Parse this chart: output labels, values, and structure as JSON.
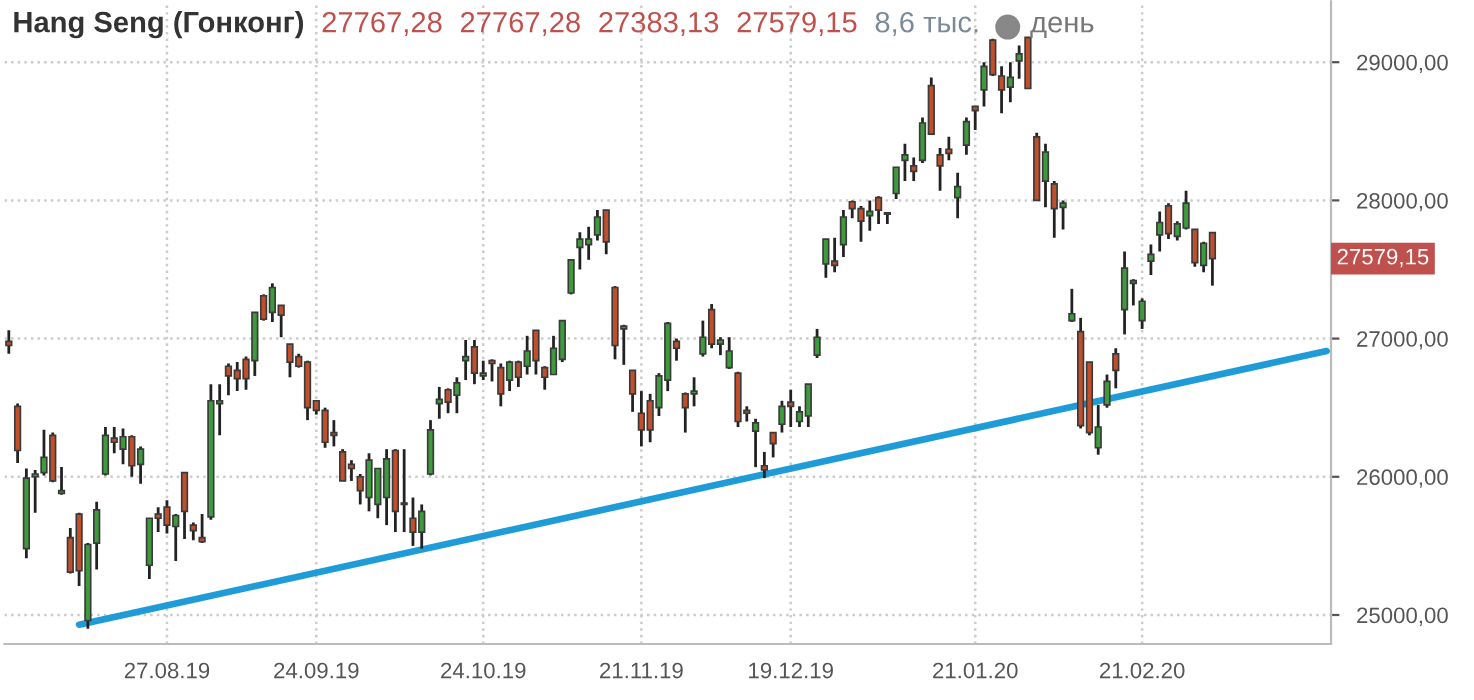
{
  "chart_data": {
    "type": "candlestick",
    "title": "Hang Seng (Гонконг)",
    "annotations": [
      "27767,28",
      "27767,28",
      "27383,13",
      "27579,15",
      "8,6 тыс.",
      "день",
      "27579,15"
    ],
    "categories": [
      null,
      null,
      null,
      null,
      null,
      null,
      null,
      null,
      null,
      null,
      null,
      null,
      null,
      null,
      null,
      null,
      null,
      null,
      "27.08.19",
      null,
      null,
      null,
      null,
      null,
      null,
      null,
      null,
      null,
      null,
      null,
      null,
      null,
      null,
      null,
      null,
      "24.09.19",
      null,
      null,
      null,
      null,
      null,
      null,
      null,
      null,
      null,
      null,
      null,
      null,
      null,
      null,
      null,
      null,
      null,
      null,
      "24.10.19",
      null,
      null,
      null,
      null,
      null,
      null,
      null,
      null,
      null,
      null,
      null,
      null,
      null,
      null,
      null,
      null,
      null,
      "21.11.19",
      null,
      null,
      null,
      null,
      null,
      null,
      null,
      null,
      null,
      null,
      null,
      null,
      null,
      null,
      null,
      null,
      "19.12.19",
      null,
      null,
      null,
      null,
      null,
      null,
      null,
      null,
      null,
      null,
      null,
      null,
      null,
      null,
      null,
      null,
      null,
      null,
      null,
      null,
      "21.01.20",
      null,
      null,
      null,
      null,
      null,
      null,
      null,
      null,
      null,
      null,
      null,
      null,
      null,
      null,
      null,
      null,
      null,
      null,
      "21.02.20",
      null,
      null,
      null,
      null,
      null,
      null,
      null,
      null,
      null,
      null,
      null,
      null,
      null,
      null,
      null,
      null,
      null,
      null,
      null,
      null,
      null
    ],
    "ohlc": [
      [
        26980,
        27060,
        26890,
        26950
      ],
      [
        26510,
        26530,
        26100,
        26190
      ],
      [
        25480,
        26060,
        25410,
        25990
      ],
      [
        26000,
        26050,
        25740,
        26020
      ],
      [
        26030,
        26340,
        26010,
        26140
      ],
      [
        26300,
        26320,
        25960,
        25970
      ],
      [
        25880,
        26070,
        25870,
        25900
      ],
      [
        25560,
        25630,
        25300,
        25310
      ],
      [
        25730,
        25740,
        25210,
        25320
      ],
      [
        24960,
        25520,
        24900,
        25510
      ],
      [
        25520,
        25820,
        25330,
        25760
      ],
      [
        26020,
        26360,
        26010,
        26300
      ],
      [
        26280,
        26360,
        26170,
        26250
      ],
      [
        26200,
        26350,
        26090,
        26290
      ],
      [
        26290,
        26300,
        26000,
        26080
      ],
      [
        26090,
        26220,
        25950,
        26200
      ],
      [
        25360,
        25700,
        25260,
        25700
      ],
      [
        25730,
        25780,
        25600,
        25700
      ],
      [
        25780,
        25830,
        25590,
        25650
      ],
      [
        25640,
        25730,
        25390,
        25720
      ],
      [
        26030,
        26030,
        25550,
        25750
      ],
      [
        25650,
        25670,
        25540,
        25610
      ],
      [
        25560,
        25730,
        25520,
        25530
      ],
      [
        25710,
        26670,
        25690,
        26550
      ],
      [
        26530,
        26670,
        26300,
        26550
      ],
      [
        26800,
        26820,
        26590,
        26730
      ],
      [
        26770,
        26830,
        26620,
        26710
      ],
      [
        26850,
        26870,
        26630,
        26710
      ],
      [
        26840,
        27190,
        26730,
        27190
      ],
      [
        27310,
        27320,
        27130,
        27140
      ],
      [
        27190,
        27400,
        27120,
        27370
      ],
      [
        27240,
        27240,
        27010,
        27170
      ],
      [
        26960,
        26960,
        26720,
        26830
      ],
      [
        26870,
        26890,
        26790,
        26800
      ],
      [
        26830,
        26840,
        26410,
        26500
      ],
      [
        26550,
        26550,
        26450,
        26480
      ],
      [
        26480,
        26500,
        26210,
        26250
      ],
      [
        26320,
        26410,
        26220,
        26300
      ],
      [
        26180,
        26200,
        25970,
        25970
      ],
      [
        26090,
        26120,
        25970,
        26060
      ],
      [
        26000,
        26020,
        25800,
        25900
      ],
      [
        25850,
        26170,
        25750,
        26120
      ],
      [
        25800,
        26060,
        25700,
        26060
      ],
      [
        25850,
        26200,
        25650,
        26130
      ],
      [
        26190,
        26200,
        25600,
        25750
      ],
      [
        25800,
        26200,
        25600,
        25810
      ],
      [
        25700,
        25850,
        25500,
        25600
      ],
      [
        25600,
        25800,
        25480,
        25750
      ],
      [
        26020,
        26410,
        26010,
        26340
      ],
      [
        26530,
        26650,
        26420,
        26560
      ],
      [
        26630,
        26640,
        26460,
        26540
      ],
      [
        26590,
        26720,
        26460,
        26680
      ],
      [
        26840,
        26990,
        26700,
        26870
      ],
      [
        26940,
        26990,
        26670,
        26750
      ],
      [
        26730,
        26840,
        26700,
        26750
      ],
      [
        26840,
        26850,
        26690,
        26820
      ],
      [
        26790,
        26820,
        26510,
        26600
      ],
      [
        26700,
        26840,
        26620,
        26830
      ],
      [
        26830,
        26840,
        26650,
        26720
      ],
      [
        26800,
        27020,
        26740,
        26910
      ],
      [
        27060,
        27060,
        26740,
        26840
      ],
      [
        26790,
        26800,
        26630,
        26720
      ],
      [
        26740,
        27020,
        26740,
        26930
      ],
      [
        26850,
        27130,
        26830,
        27130
      ],
      [
        27330,
        27570,
        27320,
        27570
      ],
      [
        27660,
        27770,
        27500,
        27720
      ],
      [
        27680,
        27810,
        27570,
        27720
      ],
      [
        27750,
        27930,
        27710,
        27880
      ],
      [
        27930,
        27930,
        27610,
        27700
      ],
      [
        27370,
        27380,
        26850,
        26950
      ],
      [
        27070,
        27100,
        26810,
        27090
      ],
      [
        26770,
        26770,
        26470,
        26600
      ],
      [
        26460,
        26620,
        26220,
        26340
      ],
      [
        26550,
        26600,
        26250,
        26340
      ],
      [
        26500,
        26750,
        26440,
        26730
      ],
      [
        26700,
        27120,
        26620,
        27110
      ],
      [
        26980,
        27000,
        26840,
        26930
      ],
      [
        26600,
        26610,
        26320,
        26500
      ],
      [
        26600,
        26720,
        26510,
        26620
      ],
      [
        26890,
        27130,
        26870,
        27010
      ],
      [
        27210,
        27250,
        26930,
        26960
      ],
      [
        26960,
        27010,
        26880,
        26990
      ],
      [
        26790,
        27010,
        26780,
        26910
      ],
      [
        26750,
        26760,
        26360,
        26400
      ],
      [
        26480,
        26510,
        26400,
        26460
      ],
      [
        26330,
        26420,
        26070,
        26390
      ],
      [
        26080,
        26180,
        25990,
        26050
      ],
      [
        26320,
        26320,
        26140,
        26240
      ],
      [
        26380,
        26550,
        26320,
        26510
      ],
      [
        26540,
        26630,
        26360,
        26510
      ],
      [
        26400,
        26510,
        26360,
        26470
      ],
      [
        26440,
        26670,
        26360,
        26670
      ],
      [
        26880,
        27070,
        26860,
        27010
      ],
      [
        27540,
        27720,
        27440,
        27720
      ],
      [
        27560,
        27730,
        27480,
        27530
      ],
      [
        27680,
        27930,
        27590,
        27880
      ],
      [
        27990,
        28000,
        27870,
        27940
      ],
      [
        27940,
        27960,
        27700,
        27850
      ],
      [
        27890,
        28000,
        27780,
        27920
      ],
      [
        28020,
        28030,
        27830,
        27930
      ],
      [
        27910,
        27910,
        27830,
        27900
      ],
      [
        28050,
        28240,
        28010,
        28240
      ],
      [
        28290,
        28410,
        28140,
        28330
      ],
      [
        28250,
        28310,
        28140,
        28210
      ],
      [
        28290,
        28600,
        28270,
        28560
      ],
      [
        28830,
        28890,
        28480,
        28480
      ],
      [
        28330,
        28380,
        28070,
        28250
      ],
      [
        28370,
        28460,
        28290,
        28340
      ],
      [
        28020,
        28200,
        27870,
        28100
      ],
      [
        28400,
        28600,
        28330,
        28570
      ],
      [
        28680,
        28680,
        28510,
        28650
      ],
      [
        28800,
        29000,
        28680,
        28970
      ],
      [
        29160,
        29170,
        28900,
        28910
      ],
      [
        28900,
        28970,
        28630,
        28800
      ],
      [
        28820,
        29000,
        28710,
        28890
      ],
      [
        29010,
        29120,
        28880,
        29060
      ],
      [
        29180,
        29180,
        28810,
        28810
      ],
      [
        28460,
        28490,
        28000,
        28000
      ],
      [
        28140,
        28410,
        27950,
        28350
      ],
      [
        28120,
        28140,
        27730,
        27940
      ],
      [
        27950,
        28000,
        27790,
        27980
      ],
      [
        27130,
        27360,
        27120,
        27180
      ],
      [
        27050,
        27150,
        26350,
        26370
      ],
      [
        26830,
        26830,
        26300,
        26320
      ],
      [
        26210,
        26520,
        26160,
        26360
      ],
      [
        26520,
        26740,
        26500,
        26690
      ],
      [
        26890,
        26930,
        26640,
        26770
      ],
      [
        27210,
        27630,
        27030,
        27510
      ],
      [
        27400,
        27430,
        27240,
        27420
      ],
      [
        27130,
        27290,
        27070,
        27270
      ],
      [
        27560,
        27680,
        27460,
        27610
      ],
      [
        27750,
        27920,
        27630,
        27840
      ],
      [
        27960,
        27980,
        27720,
        27760
      ],
      [
        27740,
        27850,
        27710,
        27830
      ],
      [
        27800,
        28070,
        27790,
        27980
      ],
      [
        27790,
        27790,
        27520,
        27550
      ],
      [
        27530,
        27700,
        27480,
        27690
      ],
      [
        27767.28,
        27767.28,
        27383.13,
        27579.15
      ],
      null,
      null,
      null,
      null,
      null,
      null,
      null,
      null,
      null,
      null,
      null,
      null,
      null
    ],
    "colors": [
      "#c24f2b",
      "#c24f2b",
      "#3d9b3d",
      "#3d9b3d",
      "#3d9b3d",
      "#c24f2b",
      "#3d9b3d",
      "#c24f2b",
      "#c24f2b",
      "#3d9b3d",
      "#3d9b3d",
      "#3d9b3d",
      "#c24f2b",
      "#3d9b3d",
      "#c24f2b",
      "#3d9b3d",
      "#3d9b3d",
      "#c24f2b",
      "#c24f2b",
      "#3d9b3d",
      "#c24f2b",
      "#c24f2b",
      "#c24f2b",
      "#3d9b3d",
      "#3d9b3d",
      "#c24f2b",
      "#c24f2b",
      "#c24f2b",
      "#3d9b3d",
      "#c24f2b",
      "#3d9b3d",
      "#c24f2b",
      "#c24f2b",
      "#c24f2b",
      "#c24f2b",
      "#c24f2b",
      "#c24f2b",
      "#c24f2b",
      "#c24f2b",
      "#c24f2b",
      "#c24f2b",
      "#3d9b3d",
      "#3d9b3d",
      "#3d9b3d",
      "#c24f2b",
      "#3d9b3d",
      "#c24f2b",
      "#3d9b3d",
      "#3d9b3d",
      "#3d9b3d",
      "#c24f2b",
      "#3d9b3d",
      "#3d9b3d",
      "#c24f2b",
      "#3d9b3d",
      "#c24f2b",
      "#c24f2b",
      "#3d9b3d",
      "#c24f2b",
      "#3d9b3d",
      "#c24f2b",
      "#c24f2b",
      "#3d9b3d",
      "#3d9b3d",
      "#3d9b3d",
      "#3d9b3d",
      "#3d9b3d",
      "#3d9b3d",
      "#c24f2b",
      "#c24f2b",
      "#3d9b3d",
      "#c24f2b",
      "#c24f2b",
      "#c24f2b",
      "#3d9b3d",
      "#3d9b3d",
      "#c24f2b",
      "#c24f2b",
      "#3d9b3d",
      "#3d9b3d",
      "#c24f2b",
      "#3d9b3d",
      "#3d9b3d",
      "#c24f2b",
      "#c24f2b",
      "#3d9b3d",
      "#c24f2b",
      "#c24f2b",
      "#3d9b3d",
      "#c24f2b",
      "#3d9b3d",
      "#3d9b3d",
      "#3d9b3d",
      "#3d9b3d",
      "#c24f2b",
      "#3d9b3d",
      "#c24f2b",
      "#c24f2b",
      "#3d9b3d",
      "#c24f2b",
      "#c24f2b",
      "#3d9b3d",
      "#3d9b3d",
      "#c24f2b",
      "#3d9b3d",
      "#c24f2b",
      "#c24f2b",
      "#c24f2b",
      "#3d9b3d",
      "#3d9b3d",
      "#c24f2b",
      "#3d9b3d",
      "#c24f2b",
      "#c24f2b",
      "#3d9b3d",
      "#3d9b3d",
      "#c24f2b",
      "#c24f2b",
      "#3d9b3d",
      "#c24f2b",
      "#3d9b3d",
      "#3d9b3d",
      "#c24f2b",
      "#c24f2b",
      "#3d9b3d",
      "#3d9b3d",
      "#c24f2b",
      "#3d9b3d",
      "#3d9b3d",
      "#3d9b3d",
      "#3d9b3d",
      "#3d9b3d",
      "#c24f2b",
      "#3d9b3d",
      "#3d9b3d",
      "#c24f2b",
      "#3d9b3d",
      "#c24f2b",
      null,
      null,
      null,
      null,
      null,
      null,
      null,
      null,
      null,
      null,
      null,
      null,
      null
    ],
    "series": [
      {
        "type": "line",
        "values": [
          null,
          null,
          null,
          null,
          null,
          null,
          null,
          null,
          24930,
          null,
          null,
          null,
          null,
          null,
          null,
          null,
          null,
          null,
          null,
          null,
          null,
          null,
          null,
          null,
          null,
          null,
          null,
          null,
          null,
          null,
          null,
          null,
          null,
          null,
          null,
          null,
          null,
          null,
          null,
          null,
          null,
          null,
          null,
          null,
          null,
          null,
          null,
          null,
          null,
          null,
          null,
          null,
          null,
          null,
          null,
          null,
          null,
          null,
          null,
          null,
          null,
          null,
          null,
          null,
          null,
          null,
          null,
          null,
          null,
          null,
          null,
          null,
          null,
          null,
          null,
          null,
          null,
          null,
          null,
          null,
          null,
          null,
          null,
          null,
          null,
          null,
          null,
          null,
          null,
          null,
          null,
          null,
          null,
          null,
          null,
          null,
          null,
          null,
          null,
          null,
          null,
          null,
          null,
          null,
          null,
          null,
          null,
          null,
          null,
          null,
          null,
          null,
          null,
          null,
          null,
          null,
          null,
          null,
          null,
          null,
          null,
          null,
          null,
          null,
          null,
          null,
          null,
          null,
          null,
          null,
          null,
          null,
          null,
          null,
          null,
          null,
          null,
          null,
          null,
          null,
          null,
          null,
          null,
          null,
          null,
          null,
          null,
          null,
          null,
          null,
          26910
        ],
        "color": "#1f9bd7"
      }
    ],
    "ylim": [
      24790,
      29440
    ],
    "yticks": [
      {
        "value": 25000,
        "label": "25000,00"
      },
      {
        "value": 26000,
        "label": "26000,00"
      },
      {
        "value": 27000,
        "label": "27000,00"
      },
      {
        "value": 28000,
        "label": "28000,00"
      },
      {
        "value": 29000,
        "label": "29000,00"
      }
    ],
    "grid": true
  }
}
